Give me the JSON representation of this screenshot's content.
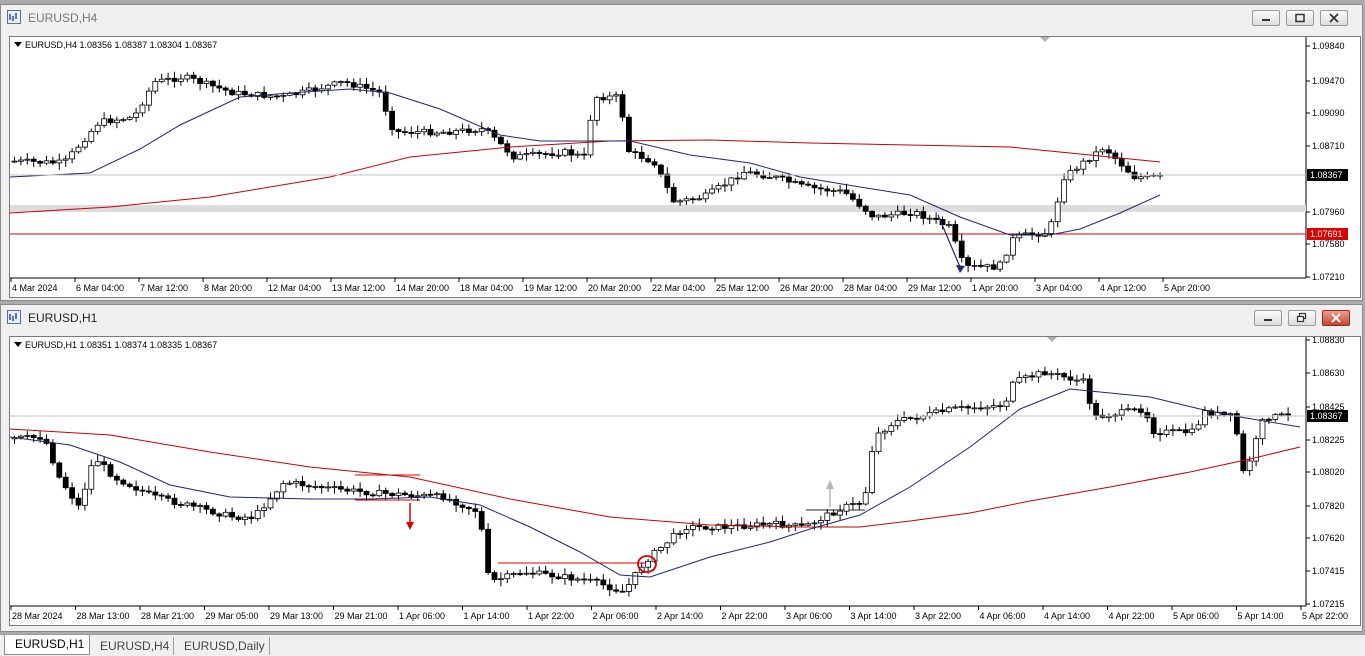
{
  "windows": [
    {
      "title": "EURUSD,H4",
      "info": "EURUSD,H4  1.08356 1.08387 1.08304 1.08367",
      "price_ticks": [
        "1.09840",
        "1.09470",
        "1.09090",
        "1.08710",
        "1.08367",
        "1.07960",
        "1.07691",
        "1.07580",
        "1.07210"
      ],
      "time_ticks": [
        "4 Mar 2024",
        "6 Mar 04:00",
        "7 Mar 12:00",
        "8 Mar 20:00",
        "12 Mar 04:00",
        "13 Mar 12:00",
        "14 Mar 20:00",
        "18 Mar 04:00",
        "19 Mar 12:00",
        "20 Mar 20:00",
        "22 Mar 04:00",
        "25 Mar 12:00",
        "26 Mar 20:00",
        "28 Mar 04:00",
        "29 Mar 12:00",
        "1 Apr 20:00",
        "3 Apr 04:00",
        "4 Apr 12:00",
        "5 Apr 20:00"
      ],
      "current_price": "1.08367",
      "level_price": "1.07691",
      "colors": {
        "bull": "#ffffff",
        "bear": "#000000",
        "ma_fast": "#1a2a6c",
        "ma_slow": "#cc0000",
        "level": "#dd0000"
      }
    },
    {
      "title": "EURUSD,H1",
      "info": "EURUSD,H1  1.08351 1.08374 1.08335 1.08367",
      "price_ticks": [
        "1.08830",
        "1.08630",
        "1.08425",
        "1.08367",
        "1.08225",
        "1.08020",
        "1.07820",
        "1.07620",
        "1.07415",
        "1.07215"
      ],
      "time_ticks": [
        "28 Mar 2024",
        "28 Mar 13:00",
        "28 Mar 21:00",
        "29 Mar 05:00",
        "29 Mar 13:00",
        "29 Mar 21:00",
        "1 Apr 06:00",
        "1 Apr 14:00",
        "1 Apr 22:00",
        "2 Apr 06:00",
        "2 Apr 14:00",
        "2 Apr 22:00",
        "3 Apr 06:00",
        "3 Apr 14:00",
        "3 Apr 22:00",
        "4 Apr 06:00",
        "4 Apr 14:00",
        "4 Apr 22:00",
        "5 Apr 06:00",
        "5 Apr 14:00",
        "5 Apr 22:00"
      ],
      "current_price": "1.08367",
      "colors": {
        "bull": "#ffffff",
        "bear": "#000000",
        "ma_fast": "#1a2a6c",
        "ma_slow": "#cc0000",
        "sell_arrow": "#dd0000",
        "buy_arrow": "#b8b8b8"
      }
    }
  ],
  "tabs": [
    "EURUSD,H1",
    "EURUSD,H4",
    "EURUSD,Daily"
  ],
  "active_tab": "EURUSD,H1"
}
